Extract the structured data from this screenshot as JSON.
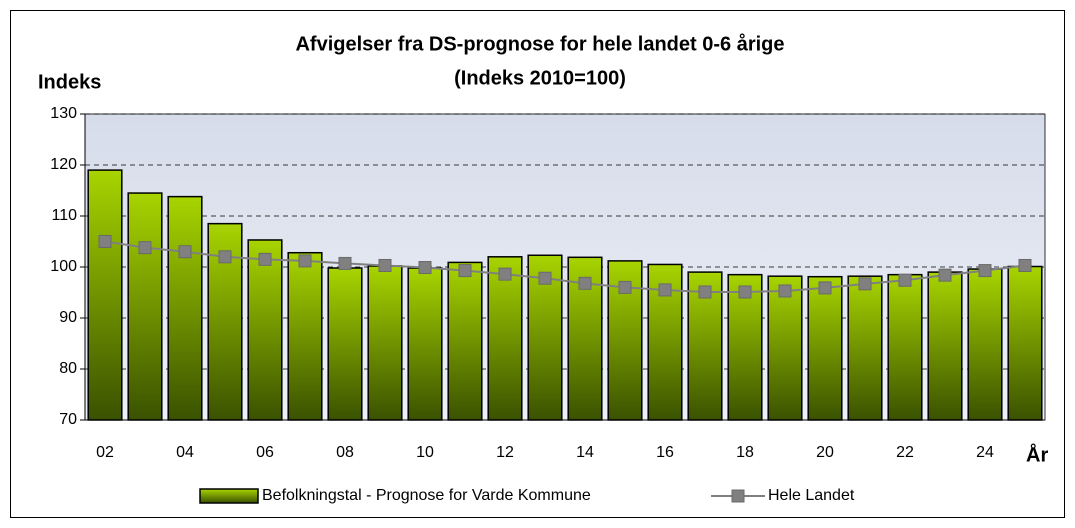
{
  "chart_data": {
    "type": "bar_line",
    "title": "Afvigelser fra DS-prognose for hele landet 0-6 årige",
    "subtitle": "(Indeks 2010=100)",
    "y_label": "Indeks",
    "x_label": "År",
    "categories": [
      "02",
      null,
      "04",
      null,
      "06",
      null,
      "08",
      null,
      "10",
      null,
      "12",
      null,
      "14",
      null,
      "16",
      null,
      "18",
      null,
      "20",
      null,
      "22",
      null,
      "24",
      null
    ],
    "series": [
      {
        "name": "Befolkningstal - Prognose for Varde Kommune",
        "type": "bar",
        "color": "#a8d400",
        "values": [
          119,
          114.5,
          113.8,
          108.5,
          105.3,
          102.8,
          99.8,
          100.2,
          99.8,
          100.9,
          102,
          102.3,
          101.9,
          101.2,
          100.5,
          99,
          98.5,
          98.2,
          98.1,
          98.2,
          98.5,
          99,
          99.6,
          100.1
        ]
      },
      {
        "name": "Hele Landet",
        "type": "line",
        "color": "#808080",
        "values": [
          105,
          103.8,
          103,
          102,
          101.5,
          101.2,
          100.7,
          100.3,
          99.9,
          99.3,
          98.6,
          97.8,
          96.8,
          96,
          95.5,
          95.1,
          95.1,
          95.3,
          95.9,
          96.7,
          97.4,
          98.4,
          99.3,
          100.3
        ]
      }
    ],
    "ylim": [
      70,
      130
    ],
    "yticks": [
      70,
      80,
      90,
      100,
      110,
      120,
      130
    ],
    "grid": true,
    "legend": "bottom"
  }
}
